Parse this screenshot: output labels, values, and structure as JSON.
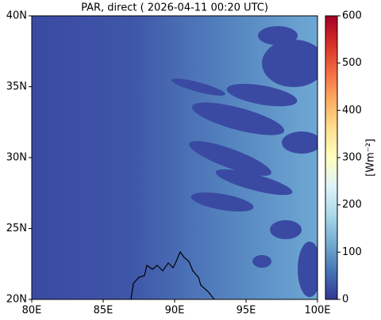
{
  "chart_data": {
    "type": "map",
    "title": "PAR, direct ( 2026-04-11 00:20 UTC)",
    "xlim": [
      80,
      100
    ],
    "xticks": [
      {
        "value": 80,
        "label": "80E"
      },
      {
        "value": 85,
        "label": "85E"
      },
      {
        "value": 90,
        "label": "90E"
      },
      {
        "value": 95,
        "label": "95E"
      },
      {
        "value": 100,
        "label": "100E"
      }
    ],
    "ylim": [
      20,
      40
    ],
    "yticks": [
      {
        "value": 20,
        "label": "20N"
      },
      {
        "value": 25,
        "label": "25N"
      },
      {
        "value": 30,
        "label": "30N"
      },
      {
        "value": 35,
        "label": "35N"
      },
      {
        "value": 40,
        "label": "40N"
      }
    ],
    "colorbar": {
      "label": "[Wm⁻²]",
      "lim": [
        0,
        600
      ],
      "ticks": [
        0,
        100,
        200,
        300,
        400,
        500,
        600
      ]
    }
  }
}
